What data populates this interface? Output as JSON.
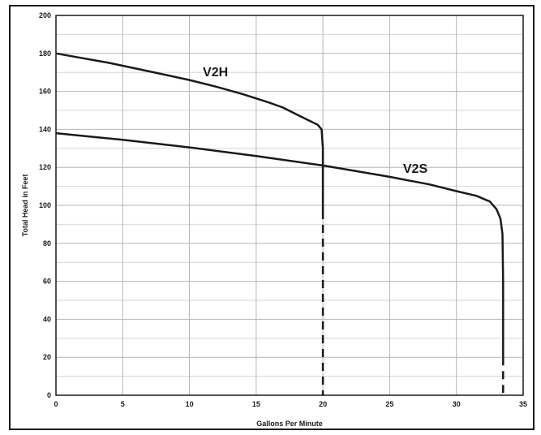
{
  "chart_data": {
    "type": "line",
    "title": "",
    "xlabel": "Gallons Per Minute",
    "ylabel": "Total Head in Feet",
    "xlim": [
      0,
      35
    ],
    "ylim": [
      0,
      200
    ],
    "x_ticks": [
      0,
      5,
      10,
      15,
      20,
      25,
      30,
      35
    ],
    "y_ticks": [
      0,
      20,
      40,
      60,
      80,
      100,
      120,
      140,
      160,
      180,
      200
    ],
    "grid": true,
    "legend": "none",
    "series": [
      {
        "name": "V2H",
        "color": "#1a1a1a",
        "points": [
          [
            0,
            180
          ],
          [
            2,
            177.5
          ],
          [
            4,
            175
          ],
          [
            6,
            172
          ],
          [
            8,
            169
          ],
          [
            10,
            166
          ],
          [
            12,
            162.5
          ],
          [
            14,
            158.5
          ],
          [
            16,
            154
          ],
          [
            17,
            151.5
          ],
          [
            18,
            148
          ],
          [
            19,
            144.5
          ],
          [
            19.6,
            142.5
          ],
          [
            19.9,
            140
          ],
          [
            20.0,
            130
          ],
          [
            20.0,
            115
          ],
          [
            20.0,
            97
          ]
        ],
        "dashed_points": [
          [
            20.0,
            97
          ],
          [
            20.0,
            0
          ]
        ]
      },
      {
        "name": "V2S",
        "color": "#1a1a1a",
        "points": [
          [
            0,
            138
          ],
          [
            5,
            134.5
          ],
          [
            10,
            130.5
          ],
          [
            15,
            126
          ],
          [
            20,
            121
          ],
          [
            25,
            115
          ],
          [
            28,
            111
          ],
          [
            30,
            107.5
          ],
          [
            31.5,
            105
          ],
          [
            32.5,
            102
          ],
          [
            33.0,
            98
          ],
          [
            33.3,
            93
          ],
          [
            33.45,
            85
          ],
          [
            33.5,
            60
          ],
          [
            33.5,
            20
          ]
        ],
        "dashed_points": [
          [
            33.5,
            20
          ],
          [
            33.5,
            0
          ]
        ]
      }
    ],
    "annotations": [
      {
        "text": "V2H",
        "x": 11,
        "y": 168
      },
      {
        "text": "V2S",
        "x": 26,
        "y": 117
      }
    ]
  }
}
